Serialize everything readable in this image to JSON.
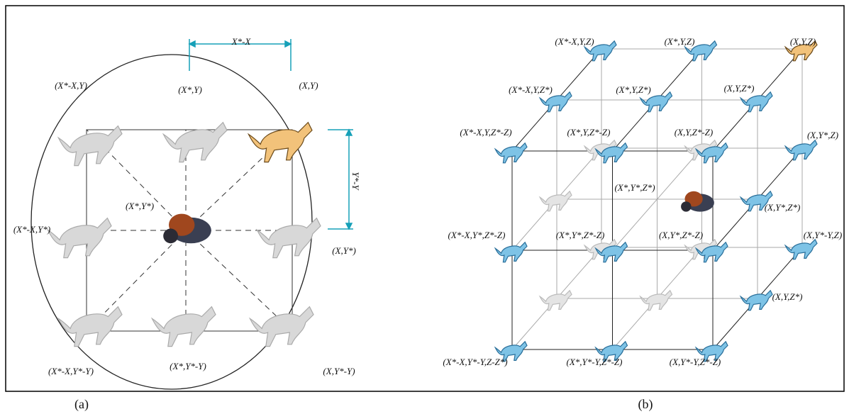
{
  "panel_a": {
    "caption": "(a)",
    "dx_label": "X*-X",
    "dy_label": "Y*-Y",
    "labels": [
      "(X*-X,Y)",
      "(X*,Y)",
      "(X,Y)",
      "(X*,Y*)",
      "(X*-X,Y*)",
      "(X,Y*)",
      "(X*-X,Y*-Y)",
      "(X*,Y*-Y)",
      "(X,Y*-Y)"
    ]
  },
  "panel_b": {
    "caption": "(b)",
    "labels": [
      "(X*-X,Y,Z)",
      "(X*,Y,Z)",
      "(X,Y,Z)",
      "(X*-X,Y,Z*)",
      "(X*,Y,Z*)",
      "(X,Y,Z*)",
      "(X*-X,Y,Z*-Z)",
      "(X*,Y,Z*-Z)",
      "(X,Y,Z*-Z)",
      "(X,Y*,Z)",
      "(X*,Y*,Z*)",
      "(X,Y*,Z*)",
      "(X*-X,Y*,Z*-Z)",
      "(X*,Y*,Z*-Z)",
      "(X,Y*,Z*-Z)",
      "(X,Y*-Y,Z)",
      "(X,Y,Z*)",
      "(X*-X,Y*-Y,Z-Z*)",
      "(X*,Y*-Y,Z*-Z)",
      "(X,Y*-Y,Z*-Z)"
    ]
  }
}
